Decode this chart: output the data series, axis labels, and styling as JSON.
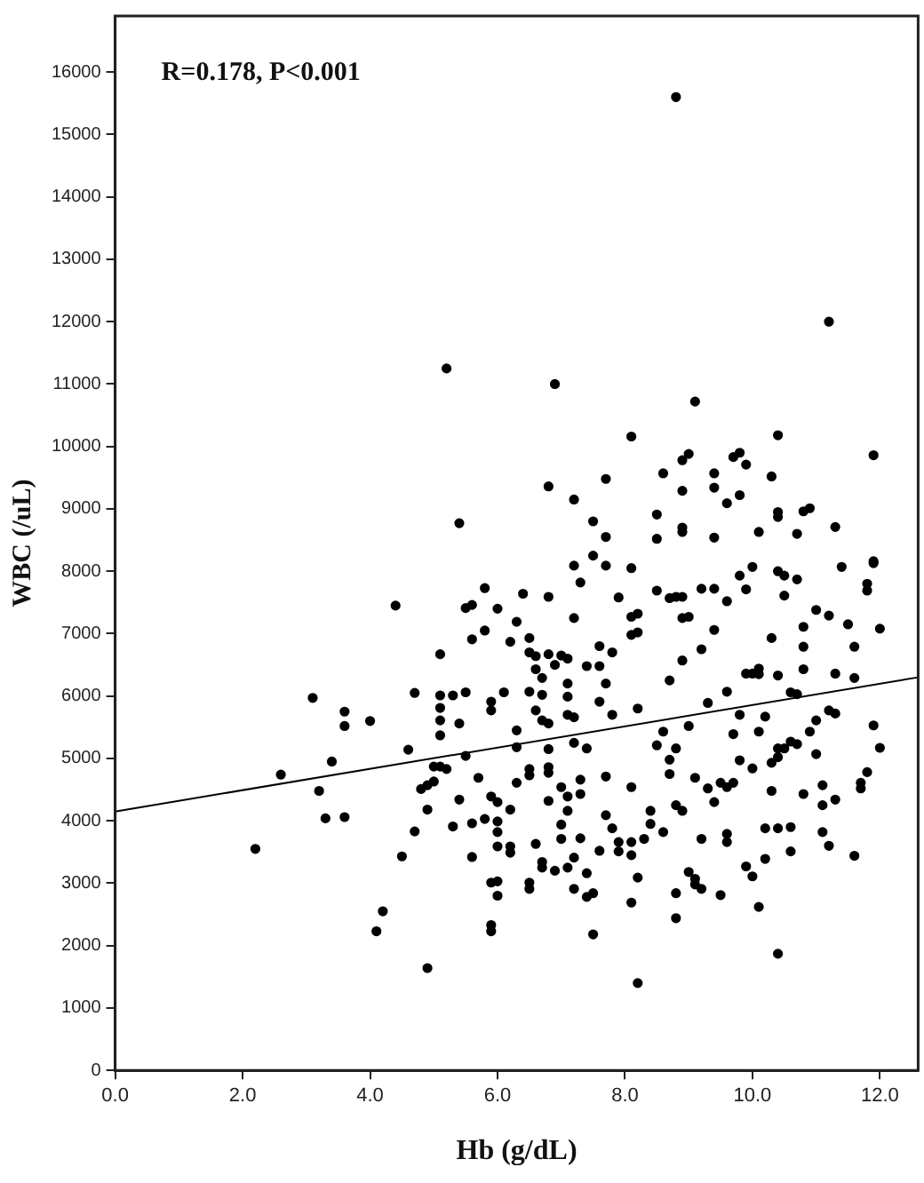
{
  "chart_data": {
    "type": "scatter",
    "xlabel": "Hb (g/dL)",
    "ylabel": "WBC (/uL)",
    "annotations": [
      "R=0.178, P<0.001"
    ],
    "xlim": [
      0,
      12.6
    ],
    "ylim": [
      0,
      16900
    ],
    "xticks": [
      {
        "value": 0,
        "label": "0.0"
      },
      {
        "value": 2,
        "label": "2.0"
      },
      {
        "value": 4,
        "label": "4.0"
      },
      {
        "value": 6,
        "label": "6.0"
      },
      {
        "value": 8,
        "label": "8.0"
      },
      {
        "value": 10,
        "label": "10.0"
      },
      {
        "value": 12,
        "label": "12.0"
      }
    ],
    "yticks": [
      0,
      1000,
      2000,
      3000,
      4000,
      5000,
      6000,
      7000,
      8000,
      9000,
      10000,
      11000,
      12000,
      13000,
      14000,
      15000,
      16000
    ],
    "grid": false,
    "legend": false,
    "marker": "circle",
    "series": [
      {
        "color": "#000000",
        "x": [
          2.2,
          2.6,
          3.1,
          3.6,
          3.6,
          3.4,
          3.2,
          3.3,
          3.6,
          4.0,
          4.4,
          4.1,
          4.2,
          4.5,
          4.7,
          4.7,
          4.6,
          4.9,
          4.9,
          4.8,
          4.9,
          5.0,
          5.1,
          5.1,
          5.1,
          5.1,
          5.1,
          5.0,
          5.1,
          5.2,
          5.3,
          5.4,
          5.5,
          5.5,
          5.3,
          5.4,
          5.6,
          5.5,
          5.6,
          5.6,
          5.6,
          5.7,
          5.8,
          5.8,
          5.8,
          5.9,
          5.9,
          5.9,
          6.0,
          5.9,
          5.9,
          5.9,
          6.0,
          6.0,
          6.0,
          6.0,
          6.0,
          6.0,
          6.1,
          6.2,
          6.2,
          6.2,
          6.2,
          6.3,
          6.3,
          6.3,
          6.3,
          6.4,
          6.5,
          6.5,
          6.5,
          6.5,
          6.5,
          6.5,
          6.5,
          6.6,
          6.6,
          6.6,
          6.6,
          6.7,
          6.7,
          6.7,
          6.7,
          6.7,
          6.8,
          6.8,
          6.8,
          6.8,
          6.8,
          6.8,
          6.8,
          6.9,
          6.9,
          7.0,
          7.1,
          7.0,
          7.0,
          7.0,
          7.1,
          7.1,
          7.1,
          7.1,
          7.1,
          7.1,
          7.2,
          7.2,
          7.2,
          7.2,
          7.2,
          7.2,
          7.3,
          7.3,
          7.3,
          7.3,
          7.4,
          7.4,
          7.4,
          7.4,
          7.5,
          7.5,
          7.6,
          7.6,
          7.6,
          7.6,
          7.7,
          7.7,
          7.7,
          7.7,
          7.8,
          7.8,
          7.8,
          7.9,
          7.9,
          7.9,
          8.1,
          8.1,
          8.2,
          8.2,
          8.1,
          8.1,
          8.3,
          8.1,
          8.2,
          8.1,
          8.2,
          8.1,
          8.2,
          8.4,
          8.4,
          8.5,
          8.5,
          8.6,
          8.6,
          8.7,
          8.8,
          8.9,
          8.7,
          8.7,
          8.7,
          8.8,
          8.8,
          8.9,
          9.0,
          8.9,
          8.8,
          8.9,
          9.0,
          9.0,
          9.1,
          9.2,
          9.1,
          9.2,
          9.2,
          9.2,
          9.3,
          9.4,
          9.4,
          9.4,
          9.5,
          9.5,
          9.6,
          9.7,
          9.6,
          9.6,
          9.6,
          9.7,
          9.8,
          9.9,
          9.9,
          10.0,
          9.9,
          10.0,
          10.0,
          10.1,
          10.1,
          10.1,
          10.1,
          10.2,
          10.2,
          10.2,
          10.3,
          10.3,
          10.4,
          10.4,
          10.4,
          10.5,
          10.5,
          10.4,
          10.6,
          10.6,
          10.6,
          10.7,
          10.7,
          10.8,
          10.8,
          10.8,
          10.8,
          11.0,
          11.0,
          11.0,
          11.1,
          11.1,
          11.1,
          11.2,
          11.2,
          11.3,
          11.3,
          11.4,
          11.5,
          11.6,
          11.6,
          11.6,
          11.7,
          11.7,
          11.8,
          11.8,
          11.8,
          11.9,
          12.0,
          12.0,
          11.9,
          10.9,
          11.2,
          11.3,
          10.5,
          10.6,
          10.7,
          10.3,
          10.4,
          8.8,
          11.2,
          6.9,
          9.1,
          8.1,
          10.4,
          11.9,
          9.0,
          8.9,
          8.6,
          9.7,
          9.8,
          9.9,
          6.8,
          7.2,
          7.7,
          7.5,
          7.7,
          7.5,
          8.5,
          8.5,
          8.9,
          8.9,
          8.9,
          9.4,
          9.4,
          9.8,
          9.6,
          10.3,
          10.4,
          10.4,
          10.8,
          10.9,
          11.3,
          10.7,
          9.4,
          10.1,
          5.4,
          5.2,
          11.9,
          9.1,
          9.8,
          10.0,
          8.8,
          9.3,
          9.6,
          9.8,
          10.4
        ],
        "values": [
          3550,
          4740,
          5970,
          5750,
          5520,
          4950,
          4480,
          4040,
          4060,
          5600,
          7450,
          2230,
          2550,
          3430,
          3830,
          6050,
          5140,
          1640,
          4180,
          4510,
          4570,
          4630,
          6670,
          6010,
          5810,
          5610,
          5370,
          4870,
          4870,
          4830,
          6010,
          5560,
          6060,
          5040,
          3910,
          4340,
          6910,
          7410,
          7460,
          3420,
          3960,
          4690,
          7050,
          7730,
          4030,
          5910,
          5770,
          4390,
          4300,
          2330,
          2230,
          3010,
          3030,
          2800,
          3990,
          3820,
          3590,
          7400,
          6060,
          3590,
          3490,
          4180,
          6870,
          7190,
          5450,
          5180,
          4610,
          7640,
          6930,
          6700,
          6070,
          4830,
          4730,
          3010,
          2910,
          3630,
          6640,
          6430,
          5770,
          6290,
          6020,
          5610,
          3340,
          3250,
          7590,
          6670,
          5560,
          5150,
          4860,
          4770,
          4320,
          3200,
          6500,
          6650,
          6600,
          4540,
          3940,
          3710,
          6200,
          5990,
          5700,
          4390,
          4160,
          3250,
          8090,
          7250,
          5660,
          5250,
          3410,
          2910,
          7820,
          4660,
          4430,
          3720,
          6480,
          5160,
          3160,
          2780,
          2840,
          2180,
          6480,
          5910,
          6800,
          3520,
          8090,
          6200,
          4710,
          4090,
          5700,
          6700,
          3880,
          7580,
          3510,
          3660,
          8050,
          2690,
          1400,
          3090,
          3450,
          3660,
          3710,
          4540,
          5800,
          6980,
          7020,
          7270,
          7320,
          4160,
          3950,
          7690,
          5210,
          5430,
          3820,
          7570,
          7590,
          7590,
          6250,
          4980,
          4750,
          2840,
          2440,
          7250,
          7270,
          6570,
          4250,
          4160,
          5520,
          3180,
          3070,
          2910,
          2980,
          7720,
          6750,
          3710,
          4520,
          4300,
          7720,
          7060,
          2810,
          4610,
          4540,
          4610,
          3660,
          3790,
          7520,
          5390,
          7930,
          7710,
          6360,
          6360,
          3270,
          3110,
          8070,
          2620,
          6440,
          6350,
          5430,
          5670,
          3390,
          3880,
          6930,
          4480,
          1870,
          6330,
          8000,
          7930,
          7610,
          3880,
          3900,
          3510,
          6060,
          6030,
          7870,
          7110,
          6430,
          6790,
          4430,
          7380,
          5610,
          5070,
          4250,
          4570,
          3820,
          3600,
          7290,
          6360,
          4340,
          8070,
          7150,
          6790,
          6290,
          3440,
          4520,
          4610,
          4780,
          7800,
          7690,
          5530,
          7080,
          5170,
          8130,
          5430,
          5770,
          5720,
          5160,
          5270,
          5230,
          4930,
          5020,
          15600,
          12000,
          11000,
          10720,
          10160,
          10180,
          9860,
          9880,
          9780,
          9570,
          9830,
          9900,
          9710,
          9360,
          9150,
          9480,
          8800,
          8550,
          8250,
          8910,
          8520,
          9290,
          8700,
          8630,
          9570,
          9340,
          9220,
          9090,
          9520,
          8950,
          8870,
          8960,
          9010,
          8710,
          8600,
          8540,
          8630,
          8770,
          11250,
          8160,
          4690,
          4970,
          4840,
          5160,
          5890,
          6070,
          5700,
          5160
        ]
      },
      {
        "type": "line",
        "color": "#000000",
        "marker": "none",
        "x": [
          0,
          12.6
        ],
        "values": [
          4150,
          6300
        ]
      }
    ]
  }
}
